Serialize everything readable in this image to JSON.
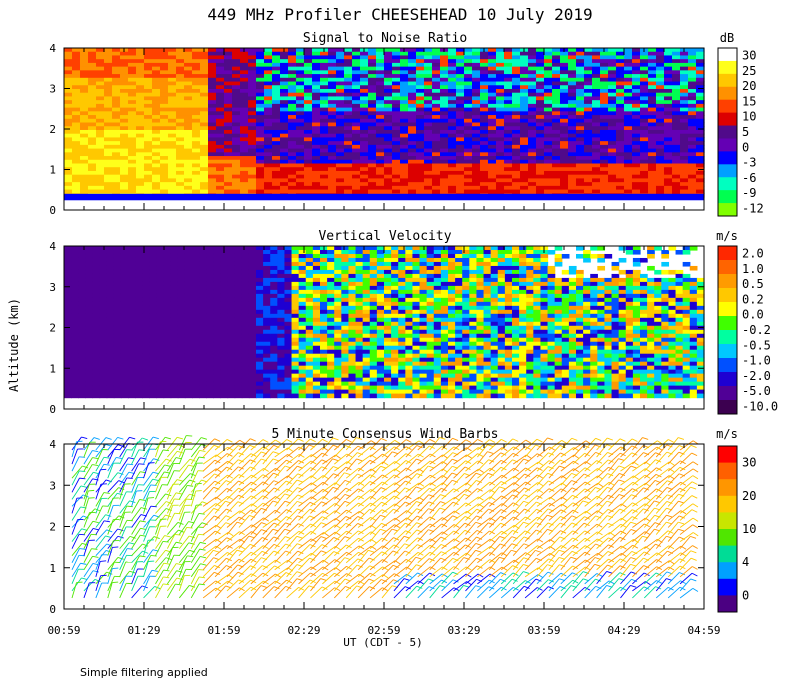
{
  "figure_title": "449 MHz Profiler CHEESEHEAD 10 July 2019",
  "footnote": "Simple filtering applied",
  "ylabel": "Altitude (km)",
  "xlabel": "UT (CDT - 5)",
  "x_ticks": [
    "00:59",
    "01:29",
    "01:59",
    "02:29",
    "02:59",
    "03:29",
    "03:59",
    "04:29",
    "04:59"
  ],
  "y_ticks": [
    "0",
    "1",
    "2",
    "3",
    "4"
  ],
  "chart_data": [
    {
      "type": "heatmap",
      "title": "Signal to Noise Ratio",
      "units": "dB",
      "ylim": [
        0,
        4
      ],
      "xlim": [
        "00:59",
        "04:59"
      ],
      "colorbar": {
        "labels": [
          "30",
          "25",
          "20",
          "15",
          "10",
          "5",
          "0",
          "-3",
          "-6",
          "-9",
          "-12"
        ],
        "colors": [
          "#ffffff",
          "#ffff1a",
          "#ffc800",
          "#ff9100",
          "#ff4000",
          "#dc0000",
          "#500a8a",
          "#6400b4",
          "#0000ff",
          "#00a0ff",
          "#00ffc0",
          "#00ff50",
          "#80ff00"
        ]
      }
    },
    {
      "type": "heatmap",
      "title": "Vertical Velocity",
      "units": "m/s",
      "ylim": [
        0,
        4
      ],
      "xlim": [
        "00:59",
        "04:59"
      ],
      "colorbar": {
        "labels": [
          "2.0",
          "1.0",
          "0.5",
          "0.2",
          "0.0",
          "-0.2",
          "-0.5",
          "-1.0",
          "-2.0",
          "-5.0",
          "-10.0"
        ],
        "colors": [
          "#ff2800",
          "#ff6400",
          "#ff9b00",
          "#ffc800",
          "#ffff00",
          "#40ff00",
          "#00ffa0",
          "#00c8ff",
          "#0050ff",
          "#1e00d2",
          "#500096",
          "#3c0050"
        ]
      }
    },
    {
      "type": "wind_barbs",
      "title": "5 Minute Consensus Wind Barbs",
      "units": "m/s",
      "ylim": [
        0,
        4
      ],
      "xlim": [
        "00:59",
        "04:59"
      ],
      "colorbar": {
        "labels": [
          "30",
          "20",
          "10",
          "4",
          "0"
        ],
        "colors": [
          "#ff0000",
          "#ff6000",
          "#ff9600",
          "#ffc800",
          "#c8e600",
          "#50e600",
          "#00dc96",
          "#00a0ff",
          "#0000ff",
          "#4b0082"
        ]
      }
    }
  ]
}
